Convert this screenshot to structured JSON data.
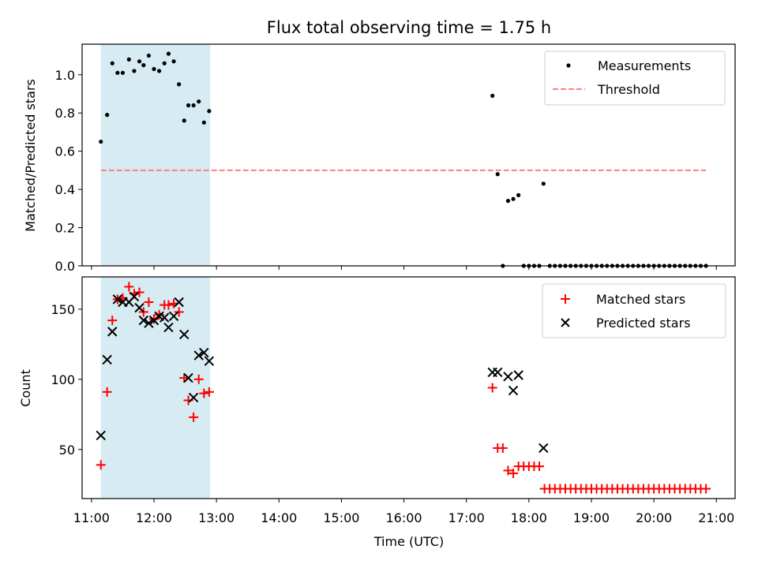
{
  "chart_data": [
    {
      "type": "scatter",
      "title": "Flux total observing time = 1.75 h",
      "ylabel": "Matched/Predicted stars",
      "xlim": [
        "10:51",
        "21:18"
      ],
      "ylim": [
        0,
        1.16
      ],
      "yticks": [
        "0.0",
        "0.2",
        "0.4",
        "0.6",
        "0.8",
        "1.0"
      ],
      "ytick_values": [
        0,
        0.2,
        0.4,
        0.6,
        0.8,
        1.0
      ],
      "shaded_interval": {
        "from": "11:09",
        "to": "12:54",
        "color": "#add8e6"
      },
      "legend_position": "top-right",
      "series": [
        {
          "name": "Measurements",
          "marker": "dot",
          "color": "#000000",
          "points": [
            [
              "11:09",
              0.65
            ],
            [
              "11:15",
              0.79
            ],
            [
              "11:20",
              1.06
            ],
            [
              "11:25",
              1.01
            ],
            [
              "11:30",
              1.01
            ],
            [
              "11:36",
              1.08
            ],
            [
              "11:41",
              1.02
            ],
            [
              "11:46",
              1.07
            ],
            [
              "11:50",
              1.05
            ],
            [
              "11:55",
              1.1
            ],
            [
              "12:00",
              1.03
            ],
            [
              "12:05",
              1.02
            ],
            [
              "12:10",
              1.06
            ],
            [
              "12:14",
              1.11
            ],
            [
              "12:19",
              1.07
            ],
            [
              "12:24",
              0.95
            ],
            [
              "12:29",
              0.76
            ],
            [
              "12:33",
              0.84
            ],
            [
              "12:38",
              0.84
            ],
            [
              "12:43",
              0.86
            ],
            [
              "12:48",
              0.75
            ],
            [
              "12:53",
              0.81
            ],
            [
              "17:25",
              0.89
            ],
            [
              "17:30",
              0.48
            ],
            [
              "17:35",
              0.0
            ],
            [
              "17:40",
              0.34
            ],
            [
              "17:45",
              0.35
            ],
            [
              "17:50",
              0.37
            ],
            [
              "18:14",
              0.43
            ],
            [
              "17:55",
              0.0
            ],
            [
              "18:00",
              0.0
            ],
            [
              "18:05",
              0.0
            ],
            [
              "18:10",
              0.0
            ],
            [
              "18:20",
              0.0
            ],
            [
              "18:25",
              0.0
            ],
            [
              "18:30",
              0.0
            ],
            [
              "18:35",
              0.0
            ],
            [
              "18:40",
              0.0
            ],
            [
              "18:45",
              0.0
            ],
            [
              "18:50",
              0.0
            ],
            [
              "18:55",
              0.0
            ],
            [
              "19:00",
              0.0
            ],
            [
              "19:05",
              0.0
            ],
            [
              "19:10",
              0.0
            ],
            [
              "19:15",
              0.0
            ],
            [
              "19:20",
              0.0
            ],
            [
              "19:25",
              0.0
            ],
            [
              "19:30",
              0.0
            ],
            [
              "19:35",
              0.0
            ],
            [
              "19:40",
              0.0
            ],
            [
              "19:45",
              0.0
            ],
            [
              "19:50",
              0.0
            ],
            [
              "19:55",
              0.0
            ],
            [
              "20:00",
              0.0
            ],
            [
              "20:05",
              0.0
            ],
            [
              "20:10",
              0.0
            ],
            [
              "20:15",
              0.0
            ],
            [
              "20:20",
              0.0
            ],
            [
              "20:25",
              0.0
            ],
            [
              "20:30",
              0.0
            ],
            [
              "20:35",
              0.0
            ],
            [
              "20:40",
              0.0
            ],
            [
              "20:45",
              0.0
            ],
            [
              "20:50",
              0.0
            ]
          ]
        },
        {
          "name": "Threshold",
          "line": "dashed",
          "color": "#ff7f7f",
          "points": [
            [
              "11:09",
              0.5
            ],
            [
              "20:50",
              0.5
            ]
          ]
        }
      ]
    },
    {
      "type": "scatter",
      "xlabel": "Time (UTC)",
      "ylabel": "Count",
      "xlim": [
        "10:51",
        "21:18"
      ],
      "ylim": [
        15,
        173
      ],
      "xticks": [
        "11:00",
        "12:00",
        "13:00",
        "14:00",
        "15:00",
        "16:00",
        "17:00",
        "18:00",
        "19:00",
        "20:00",
        "21:00"
      ],
      "yticks": [
        "50",
        "100",
        "150"
      ],
      "ytick_values": [
        50,
        100,
        150
      ],
      "shaded_interval": {
        "from": "11:09",
        "to": "12:54",
        "color": "#add8e6"
      },
      "legend_position": "top-right",
      "series": [
        {
          "name": "Matched stars",
          "marker": "plus",
          "color": "#ff0000",
          "points": [
            [
              "11:09",
              39
            ],
            [
              "11:15",
              91
            ],
            [
              "11:20",
              142
            ],
            [
              "11:25",
              157
            ],
            [
              "11:30",
              158
            ],
            [
              "11:36",
              166
            ],
            [
              "11:41",
              161
            ],
            [
              "11:46",
              162
            ],
            [
              "11:50",
              148
            ],
            [
              "11:55",
              155
            ],
            [
              "12:00",
              143
            ],
            [
              "12:05",
              146
            ],
            [
              "12:10",
              153
            ],
            [
              "12:14",
              153
            ],
            [
              "12:19",
              154
            ],
            [
              "12:24",
              148
            ],
            [
              "12:29",
              101
            ],
            [
              "12:33",
              85
            ],
            [
              "12:38",
              73
            ],
            [
              "12:43",
              100
            ],
            [
              "12:48",
              90
            ],
            [
              "12:53",
              91
            ],
            [
              "17:25",
              94
            ],
            [
              "17:30",
              51
            ],
            [
              "17:35",
              51
            ],
            [
              "17:40",
              35
            ],
            [
              "17:45",
              33
            ],
            [
              "17:50",
              38
            ],
            [
              "17:55",
              38
            ],
            [
              "18:00",
              38
            ],
            [
              "18:05",
              38
            ],
            [
              "18:10",
              38
            ],
            [
              "18:15",
              22
            ],
            [
              "18:20",
              22
            ],
            [
              "18:25",
              22
            ],
            [
              "18:30",
              22
            ],
            [
              "18:35",
              22
            ],
            [
              "18:40",
              22
            ],
            [
              "18:45",
              22
            ],
            [
              "18:50",
              22
            ],
            [
              "18:55",
              22
            ],
            [
              "19:00",
              22
            ],
            [
              "19:05",
              22
            ],
            [
              "19:10",
              22
            ],
            [
              "19:15",
              22
            ],
            [
              "19:20",
              22
            ],
            [
              "19:25",
              22
            ],
            [
              "19:30",
              22
            ],
            [
              "19:35",
              22
            ],
            [
              "19:40",
              22
            ],
            [
              "19:45",
              22
            ],
            [
              "19:50",
              22
            ],
            [
              "19:55",
              22
            ],
            [
              "20:00",
              22
            ],
            [
              "20:05",
              22
            ],
            [
              "20:10",
              22
            ],
            [
              "20:15",
              22
            ],
            [
              "20:20",
              22
            ],
            [
              "20:25",
              22
            ],
            [
              "20:30",
              22
            ],
            [
              "20:35",
              22
            ],
            [
              "20:40",
              22
            ],
            [
              "20:45",
              22
            ],
            [
              "20:50",
              22
            ]
          ]
        },
        {
          "name": "Predicted stars",
          "marker": "x",
          "color": "#000000",
          "points": [
            [
              "11:09",
              60
            ],
            [
              "11:15",
              114
            ],
            [
              "11:20",
              134
            ],
            [
              "11:25",
              157
            ],
            [
              "11:30",
              155
            ],
            [
              "11:36",
              155
            ],
            [
              "11:41",
              159
            ],
            [
              "11:46",
              151
            ],
            [
              "11:50",
              142
            ],
            [
              "11:55",
              140
            ],
            [
              "12:00",
              142
            ],
            [
              "12:05",
              145
            ],
            [
              "12:10",
              144
            ],
            [
              "12:14",
              137
            ],
            [
              "12:19",
              145
            ],
            [
              "12:24",
              155
            ],
            [
              "12:29",
              132
            ],
            [
              "12:33",
              101
            ],
            [
              "12:38",
              87
            ],
            [
              "12:43",
              117
            ],
            [
              "12:48",
              119
            ],
            [
              "12:53",
              113
            ],
            [
              "17:25",
              105
            ],
            [
              "17:30",
              105
            ],
            [
              "17:40",
              102
            ],
            [
              "17:45",
              92
            ],
            [
              "17:50",
              103
            ],
            [
              "18:14",
              51
            ]
          ]
        }
      ]
    }
  ]
}
